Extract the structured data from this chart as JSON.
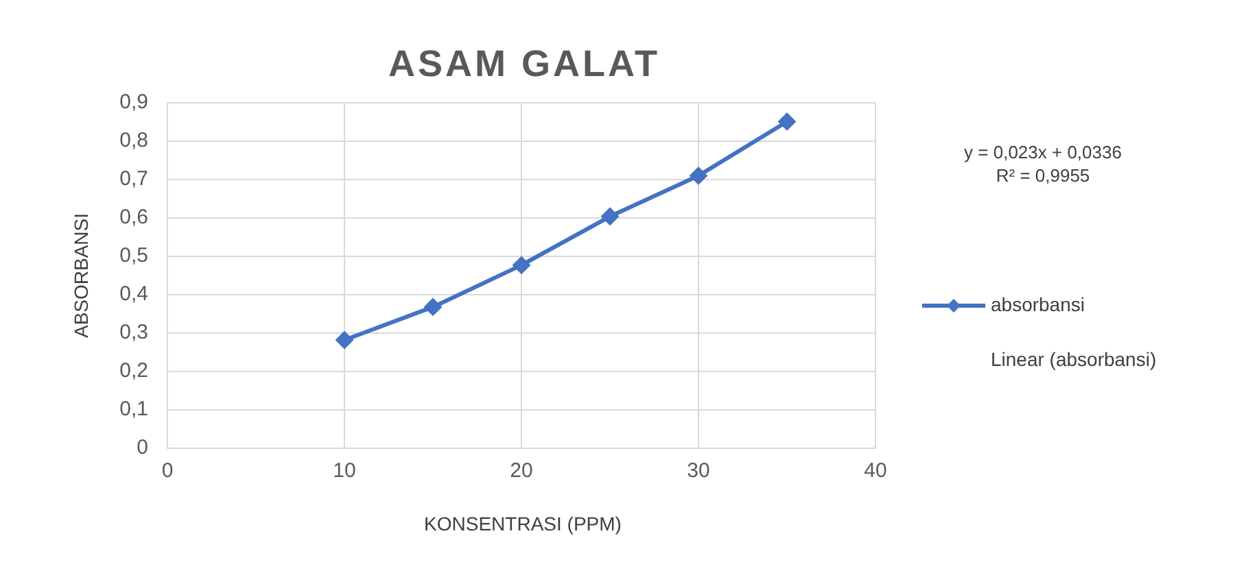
{
  "chart_data": {
    "type": "line",
    "title": "ASAM GALAT",
    "xlabel": "KONSENTRASI (PPM)",
    "ylabel": "ABSORBANSI",
    "x": [
      10,
      15,
      20,
      25,
      30,
      35
    ],
    "series": [
      {
        "name": "absorbansi",
        "color": "#4472c4",
        "values": [
          0.282,
          0.368,
          0.477,
          0.604,
          0.71,
          0.851
        ]
      }
    ],
    "xlim": [
      0,
      40
    ],
    "xticks": [
      0,
      10,
      20,
      30,
      40
    ],
    "ylim": [
      0,
      0.9
    ],
    "yticks": [
      {
        "value": 0,
        "label": "0"
      },
      {
        "value": 0.1,
        "label": "0,1"
      },
      {
        "value": 0.2,
        "label": "0,2"
      },
      {
        "value": 0.3,
        "label": "0,3"
      },
      {
        "value": 0.4,
        "label": "0,4"
      },
      {
        "value": 0.5,
        "label": "0,5"
      },
      {
        "value": 0.6,
        "label": "0,6"
      },
      {
        "value": 0.7,
        "label": "0,7"
      },
      {
        "value": 0.8,
        "label": "0,8"
      },
      {
        "value": 0.9,
        "label": "0,9"
      }
    ],
    "grid": true,
    "legend": "right",
    "marker": "diamond",
    "line_style": "solid",
    "annotations": [
      "y = 0,023x + 0,0336",
      "R² = 0,9955",
      "Linear (absorbansi)"
    ]
  }
}
